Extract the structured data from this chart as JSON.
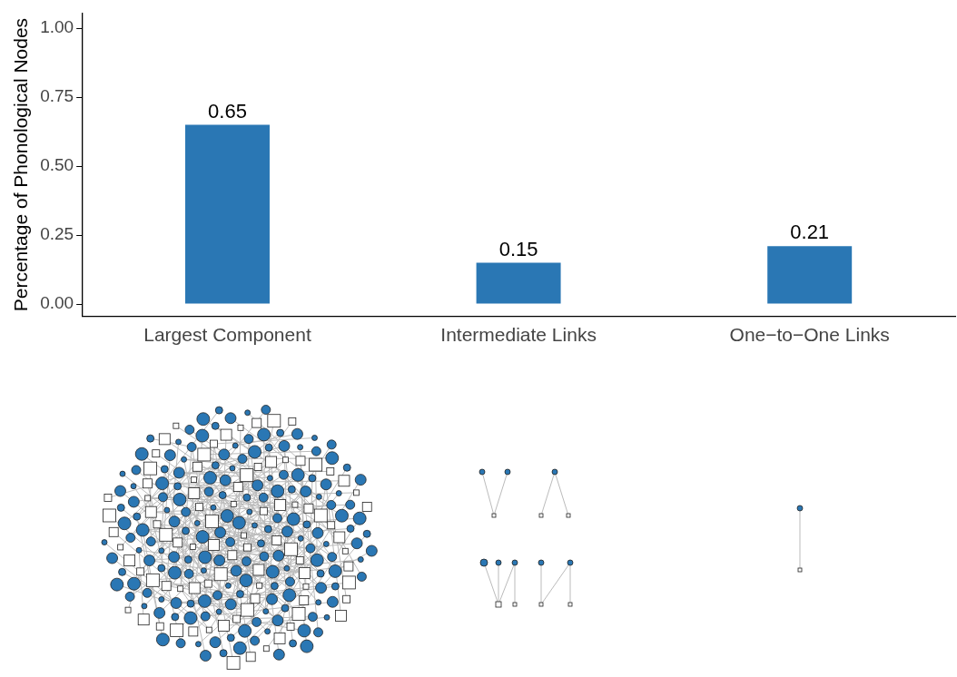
{
  "chart_data": {
    "type": "bar",
    "ylabel": "Percentage of Phonological Nodes",
    "categories": [
      "Largest Component",
      "Intermediate Links",
      "One−to−One Links"
    ],
    "values": [
      0.65,
      0.15,
      0.21
    ],
    "color": "#2a77b4",
    "ylim": [
      -0.045,
      1.055
    ],
    "yticks": [
      {
        "value": 0,
        "label": "0.00"
      },
      {
        "value": 0.25,
        "label": "0.25"
      },
      {
        "value": 0.5,
        "label": "0.50"
      },
      {
        "value": 0.75,
        "label": "0.75"
      },
      {
        "value": 1,
        "label": "1.00"
      }
    ],
    "data_labels": true,
    "grid": false,
    "legend": false
  }
}
